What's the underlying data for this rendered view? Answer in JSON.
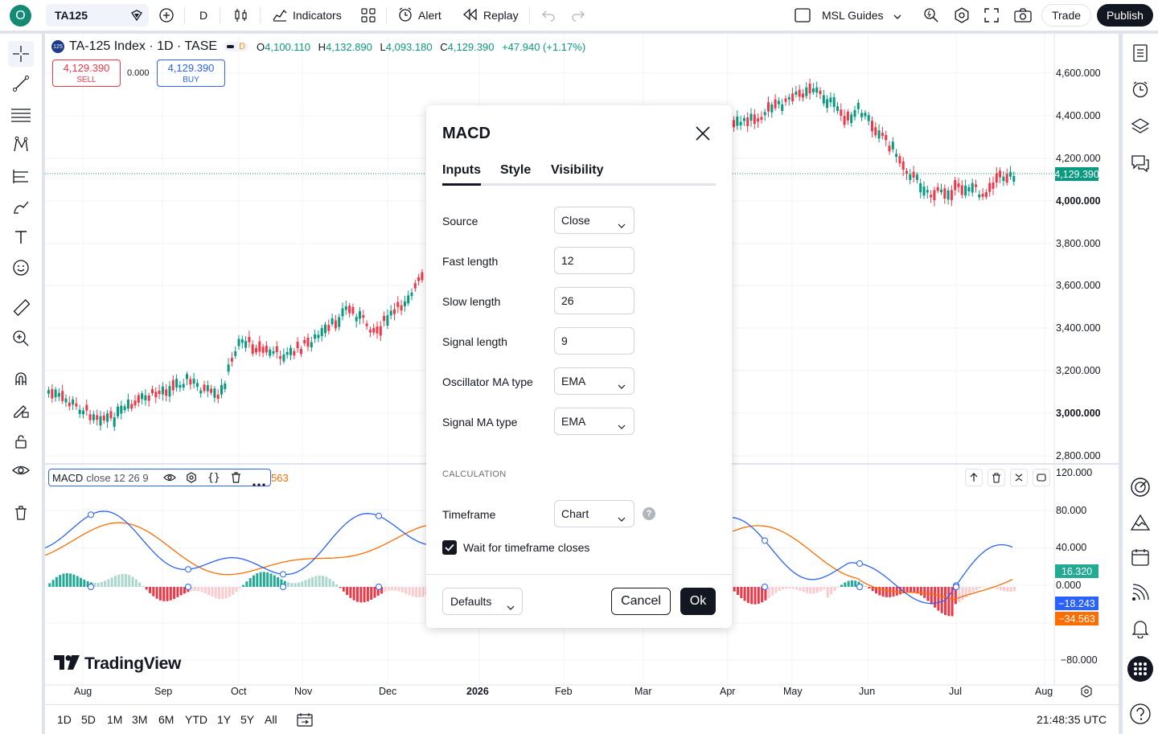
{
  "topbar": {
    "symbol": "TA125",
    "interval": "D",
    "indicators_label": "Indicators",
    "alert_label": "Alert",
    "replay_label": "Replay",
    "layout_name": "MSL Guides",
    "trade_label": "Trade",
    "publish_label": "Publish",
    "avatar_letter": "O"
  },
  "legend": {
    "badge": "125",
    "title": "TA-125 Index · 1D · TASE",
    "o_label": "O",
    "o": "4,100.110",
    "h_label": "H",
    "h": "4,132.890",
    "l_label": "L",
    "l": "4,093.180",
    "c_label": "C",
    "c": "4,129.390",
    "change": "+47.940 (+1.17%)",
    "sell_price": "4,129.390",
    "sell_label": "SELL",
    "spread": "0.000",
    "buy_price": "4,129.390",
    "buy_label": "BUY",
    "d_badge": "D"
  },
  "macd_legend": {
    "name": "MACD",
    "params": "close  12  26  9",
    "partial_value": "563"
  },
  "price_axis": {
    "labels": [
      "4,600.000",
      "4,400.000",
      "4,200.000",
      "4,000.000",
      "3,800.000",
      "3,600.000",
      "3,400.000",
      "3,200.000",
      "3,000.000",
      "2,800.000"
    ],
    "last_price_tag": "4,129.390",
    "macd_labels": [
      "120.000",
      "80.000",
      "40.000",
      "0.000",
      "−80.000"
    ],
    "hist_tag": "16.320",
    "macd_tag": "−18.243",
    "signal_tag": "−34.563"
  },
  "time_axis": [
    "Aug",
    "Sep",
    "Oct",
    "Nov",
    "Dec",
    "2026",
    "Feb",
    "Mar",
    "Apr",
    "May",
    "Jun",
    "Jul",
    "Aug"
  ],
  "bottombar": {
    "ranges": [
      "1D",
      "5D",
      "1M",
      "3M",
      "6M",
      "YTD",
      "1Y",
      "5Y",
      "All"
    ],
    "clock": "21:48:35 UTC"
  },
  "watermark": "TradingView",
  "dialog": {
    "title": "MACD",
    "tabs": [
      "Inputs",
      "Style",
      "Visibility"
    ],
    "fields": [
      {
        "label": "Source",
        "value": "Close",
        "type": "select"
      },
      {
        "label": "Fast length",
        "value": "12",
        "type": "input"
      },
      {
        "label": "Slow length",
        "value": "26",
        "type": "input"
      },
      {
        "label": "Signal length",
        "value": "9",
        "type": "input"
      },
      {
        "label": "Oscillator MA type",
        "value": "EMA",
        "type": "select"
      },
      {
        "label": "Signal MA type",
        "value": "EMA",
        "type": "select"
      }
    ],
    "section": "CALCULATION",
    "timeframe_label": "Timeframe",
    "timeframe_value": "Chart",
    "help_glyph": "?",
    "wait_label": "Wait for timeframe closes",
    "wait_checked": true,
    "defaults_label": "Defaults",
    "cancel_label": "Cancel",
    "ok_label": "Ok"
  },
  "colors": {
    "up": "#089981",
    "down": "#f23645",
    "macd_line": "#2962ff",
    "signal_line": "#ff6d00",
    "accent": "#2962ff"
  }
}
